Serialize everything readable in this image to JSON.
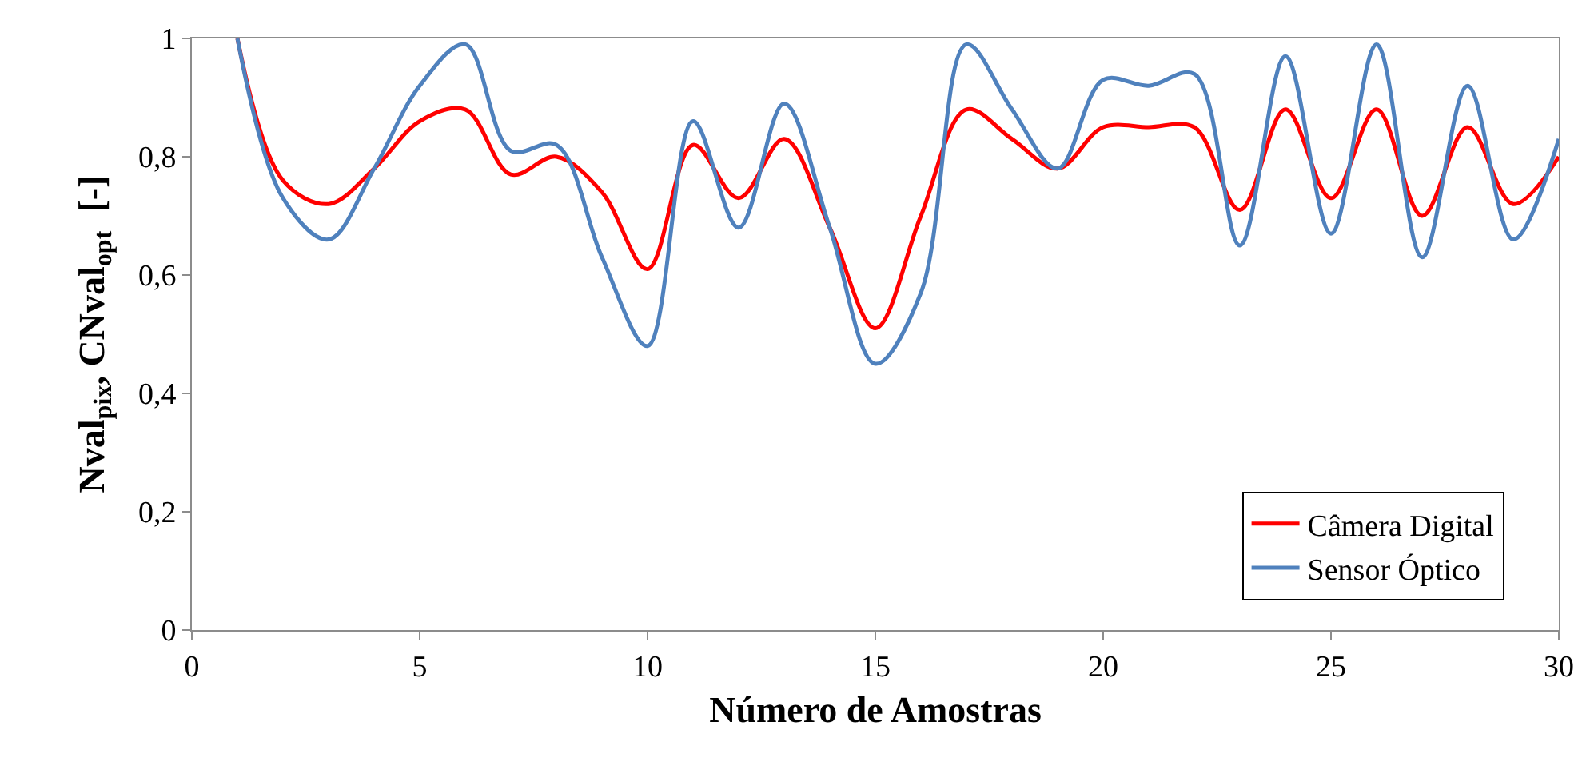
{
  "chart_data": {
    "type": "line",
    "xlabel": "Número de Amostras",
    "ylabel": "Nval$_{pix}$, CNval$_{opt}$  [-]",
    "x": [
      1,
      2,
      3,
      4,
      5,
      6,
      7,
      8,
      9,
      10,
      11,
      12,
      13,
      14,
      15,
      16,
      17,
      18,
      19,
      20,
      21,
      22,
      23,
      24,
      25,
      26,
      27,
      28,
      29,
      30
    ],
    "series": [
      {
        "name": "Câmera Digital",
        "color": "#ff0000",
        "values": [
          1.0,
          0.76,
          0.72,
          0.78,
          0.86,
          0.88,
          0.77,
          0.8,
          0.74,
          0.61,
          0.82,
          0.73,
          0.83,
          0.68,
          0.51,
          0.7,
          0.88,
          0.83,
          0.78,
          0.85,
          0.85,
          0.85,
          0.71,
          0.88,
          0.73,
          0.88,
          0.7,
          0.85,
          0.72,
          0.8
        ]
      },
      {
        "name": "Sensor Óptico",
        "color": "#4f81bd",
        "values": [
          1.0,
          0.73,
          0.66,
          0.78,
          0.92,
          0.99,
          0.81,
          0.82,
          0.63,
          0.48,
          0.86,
          0.68,
          0.89,
          0.68,
          0.45,
          0.57,
          0.99,
          0.88,
          0.78,
          0.93,
          0.92,
          0.94,
          0.65,
          0.97,
          0.67,
          0.99,
          0.63,
          0.92,
          0.66,
          0.83
        ]
      }
    ],
    "xlim": [
      0,
      30
    ],
    "xticks": [
      0,
      5,
      10,
      15,
      20,
      25,
      30
    ],
    "ylim": [
      0,
      1
    ],
    "yticks": [
      0,
      {
        "value": 0.2,
        "label": "0,2"
      },
      {
        "value": 0.4,
        "label": "0,4"
      },
      {
        "value": 0.6,
        "label": "0,6"
      },
      {
        "value": 0.8,
        "label": "0,8"
      },
      1
    ],
    "legend": "bottom right",
    "marker": "none",
    "line_style": "solid"
  }
}
